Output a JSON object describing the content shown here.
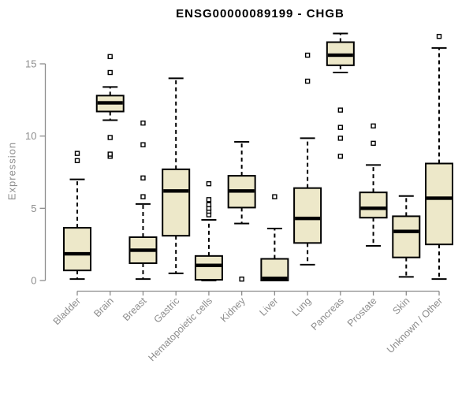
{
  "window": {
    "title": "ENSG00000089199 - CHGB"
  },
  "chart_data": {
    "type": "box",
    "title": "ENSG00000089199 - CHGB",
    "xlabel": "",
    "ylabel": "Expression",
    "yticks": [
      0,
      5,
      10,
      15
    ],
    "ylim": [
      -0.3,
      17.3
    ],
    "grid": false,
    "legend": "none",
    "categories": [
      "Bladder",
      "Brain",
      "Breast",
      "Gastric",
      "Hematopoietic cells",
      "Kidney",
      "Liver",
      "Lung",
      "Pancreas",
      "Prostate",
      "Skin",
      "Unknown / Other"
    ],
    "series": [
      {
        "name": "Bladder",
        "whisker_low": 0.1,
        "q1": 0.7,
        "median": 1.85,
        "q3": 3.65,
        "whisker_high": 7.0,
        "outliers": [
          8.3,
          8.8
        ]
      },
      {
        "name": "Brain",
        "whisker_low": 11.1,
        "q1": 11.7,
        "median": 12.3,
        "q3": 12.8,
        "whisker_high": 13.4,
        "outliers": [
          8.6,
          8.75,
          9.9,
          14.4,
          15.5
        ]
      },
      {
        "name": "Breast",
        "whisker_low": 0.1,
        "q1": 1.2,
        "median": 2.1,
        "q3": 3.0,
        "whisker_high": 5.3,
        "outliers": [
          5.8,
          7.1,
          9.4,
          10.9
        ]
      },
      {
        "name": "Gastric",
        "whisker_low": 0.5,
        "q1": 3.1,
        "median": 6.2,
        "q3": 7.7,
        "whisker_high": 14.0,
        "outliers": []
      },
      {
        "name": "Hematopoietic cells",
        "whisker_low": 0.0,
        "q1": 0.05,
        "median": 1.05,
        "q3": 1.7,
        "whisker_high": 4.2,
        "outliers": [
          4.55,
          4.8,
          5.0,
          5.25,
          5.6,
          6.7
        ]
      },
      {
        "name": "Kidney",
        "whisker_low": 3.95,
        "q1": 5.05,
        "median": 6.2,
        "q3": 7.25,
        "whisker_high": 9.6,
        "outliers": [
          0.1
        ]
      },
      {
        "name": "Liver",
        "whisker_low": 0.0,
        "q1": 0.0,
        "median": 0.15,
        "q3": 1.5,
        "whisker_high": 3.6,
        "outliers": [
          5.8
        ]
      },
      {
        "name": "Lung",
        "whisker_low": 1.1,
        "q1": 2.6,
        "median": 4.3,
        "q3": 6.4,
        "whisker_high": 9.85,
        "outliers": [
          13.8,
          15.6
        ]
      },
      {
        "name": "Pancreas",
        "whisker_low": 14.4,
        "q1": 14.9,
        "median": 15.6,
        "q3": 16.5,
        "whisker_high": 17.1,
        "outliers": [
          8.6,
          9.85,
          10.6,
          11.8
        ]
      },
      {
        "name": "Prostate",
        "whisker_low": 2.4,
        "q1": 4.35,
        "median": 5.0,
        "q3": 6.1,
        "whisker_high": 8.0,
        "outliers": [
          9.5,
          10.7
        ]
      },
      {
        "name": "Skin",
        "whisker_low": 0.25,
        "q1": 1.6,
        "median": 3.4,
        "q3": 4.45,
        "whisker_high": 5.85,
        "outliers": []
      },
      {
        "name": "Unknown / Other",
        "whisker_low": 0.1,
        "q1": 2.5,
        "median": 5.7,
        "q3": 8.1,
        "whisker_high": 16.1,
        "outliers": [
          16.9
        ]
      }
    ],
    "colors": {
      "box_fill": "#EDE8C9",
      "box_border": "#000000",
      "median": "#000000",
      "whisker": "#000000",
      "outlier": "#000000",
      "axis": "#8d8d8d",
      "title": "#000000",
      "background": "#FFFFFF"
    }
  }
}
